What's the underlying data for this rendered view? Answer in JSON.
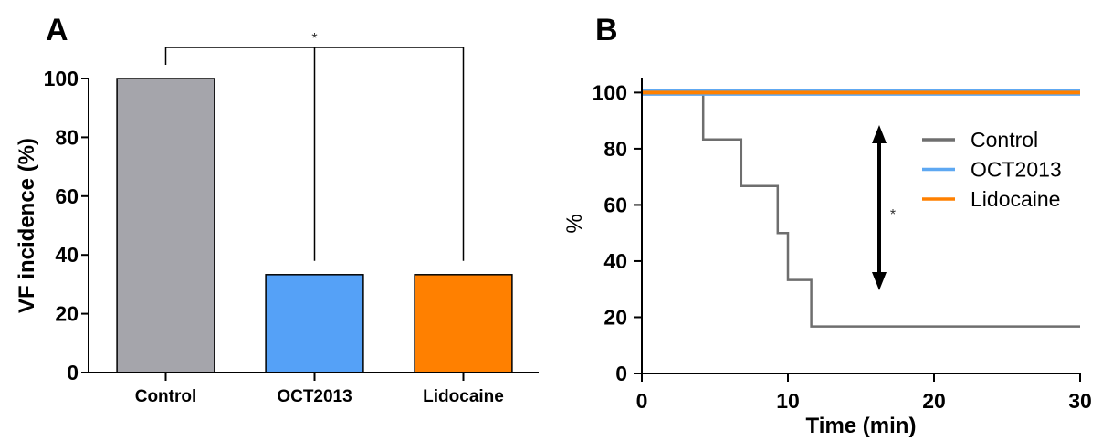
{
  "chart_data": [
    {
      "type": "bar",
      "panel_label": "A",
      "categories": [
        "Control",
        "OCT2013",
        "Lidocaine"
      ],
      "values": [
        100,
        33.3,
        33.3
      ],
      "colors": [
        "#a5a5ab",
        "#55a1f7",
        "#ff8000"
      ],
      "ylabel": "VF incidence (%)",
      "ylim": [
        0,
        100
      ],
      "yticks": [
        0,
        20,
        40,
        60,
        80,
        100
      ],
      "grid": false,
      "significance_label": "*"
    },
    {
      "type": "line",
      "panel_label": "B",
      "xlabel": "Time (min)",
      "ylabel": "%",
      "xlim": [
        0,
        30
      ],
      "ylim": [
        0,
        105
      ],
      "xticks": [
        0,
        10,
        20,
        30
      ],
      "yticks": [
        0,
        20,
        40,
        60,
        80,
        100
      ],
      "grid": false,
      "legend": "right",
      "series": [
        {
          "name": "Control",
          "color": "#6e6e6e",
          "x": [
            0,
            4.2,
            4.2,
            6.8,
            6.8,
            9.3,
            9.3,
            10,
            10,
            11.6,
            11.6,
            30
          ],
          "y": [
            100,
            100,
            83.3,
            83.3,
            66.7,
            66.7,
            50,
            50,
            33.3,
            33.3,
            16.7,
            16.7
          ]
        },
        {
          "name": "OCT2013",
          "color": "#5ea8f2",
          "x": [
            0,
            30
          ],
          "y": [
            100,
            100
          ]
        },
        {
          "name": "Lidocaine",
          "color": "#ff8000",
          "x": [
            0,
            30
          ],
          "y": [
            100,
            100
          ]
        }
      ],
      "significance_label": "*"
    }
  ]
}
